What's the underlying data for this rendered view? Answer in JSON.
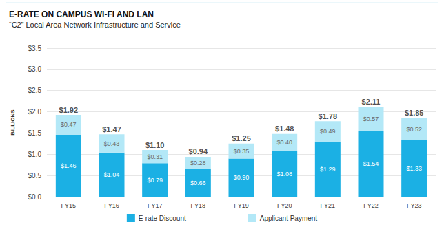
{
  "chart_data": {
    "type": "bar",
    "title": "E-RATE ON CAMPUS WI-FI AND LAN",
    "subtitle": "“C2” Local Area Network Infrastructure and Service",
    "y_label": "BILLIONS",
    "categories": [
      "FY15",
      "FY16",
      "FY17",
      "FY18",
      "FY19",
      "FY20",
      "FY21",
      "FY22",
      "FY23"
    ],
    "series": [
      {
        "name": "E-rate Discount",
        "color": "#1bb0e4",
        "values": [
          1.46,
          1.04,
          0.79,
          0.66,
          0.9,
          1.08,
          1.29,
          1.54,
          1.33
        ],
        "value_labels": [
          "$1.46",
          "$1.04",
          "$0.79",
          "$0.66",
          "$0.90",
          "$1.08",
          "$1.29",
          "$1.54",
          "$1.33"
        ]
      },
      {
        "name": "Applicant Payment",
        "color": "#b3e8f7",
        "values": [
          0.47,
          0.43,
          0.31,
          0.28,
          0.35,
          0.4,
          0.49,
          0.57,
          0.52
        ],
        "value_labels": [
          "$0.47",
          "$0.43",
          "$0.31",
          "$0.28",
          "$0.35",
          "$0.40",
          "$0.49",
          "$0.57",
          "$0.52"
        ]
      }
    ],
    "totals": [
      1.92,
      1.47,
      1.1,
      0.94,
      1.25,
      1.48,
      1.78,
      2.11,
      1.85
    ],
    "total_labels": [
      "$1.92",
      "$1.47",
      "$1.10",
      "$0.94",
      "$1.25",
      "$1.48",
      "$1.78",
      "$2.11",
      "$1.85"
    ],
    "ylim": [
      0,
      3.5
    ],
    "yticks": [
      {
        "value": 0,
        "label": "$0.0"
      },
      {
        "value": 0.5,
        "label": "$0.5"
      },
      {
        "value": 1,
        "label": "$1.0"
      },
      {
        "value": 1.5,
        "label": "$1.5"
      },
      {
        "value": 2,
        "label": "$2.0"
      },
      {
        "value": 2.5,
        "label": "$2.5"
      },
      {
        "value": 3,
        "label": "$3.0"
      },
      {
        "value": 3.5,
        "label": "$3.5"
      }
    ],
    "stacked": true,
    "data_labels": true,
    "grid": true,
    "legend": "bottom"
  }
}
